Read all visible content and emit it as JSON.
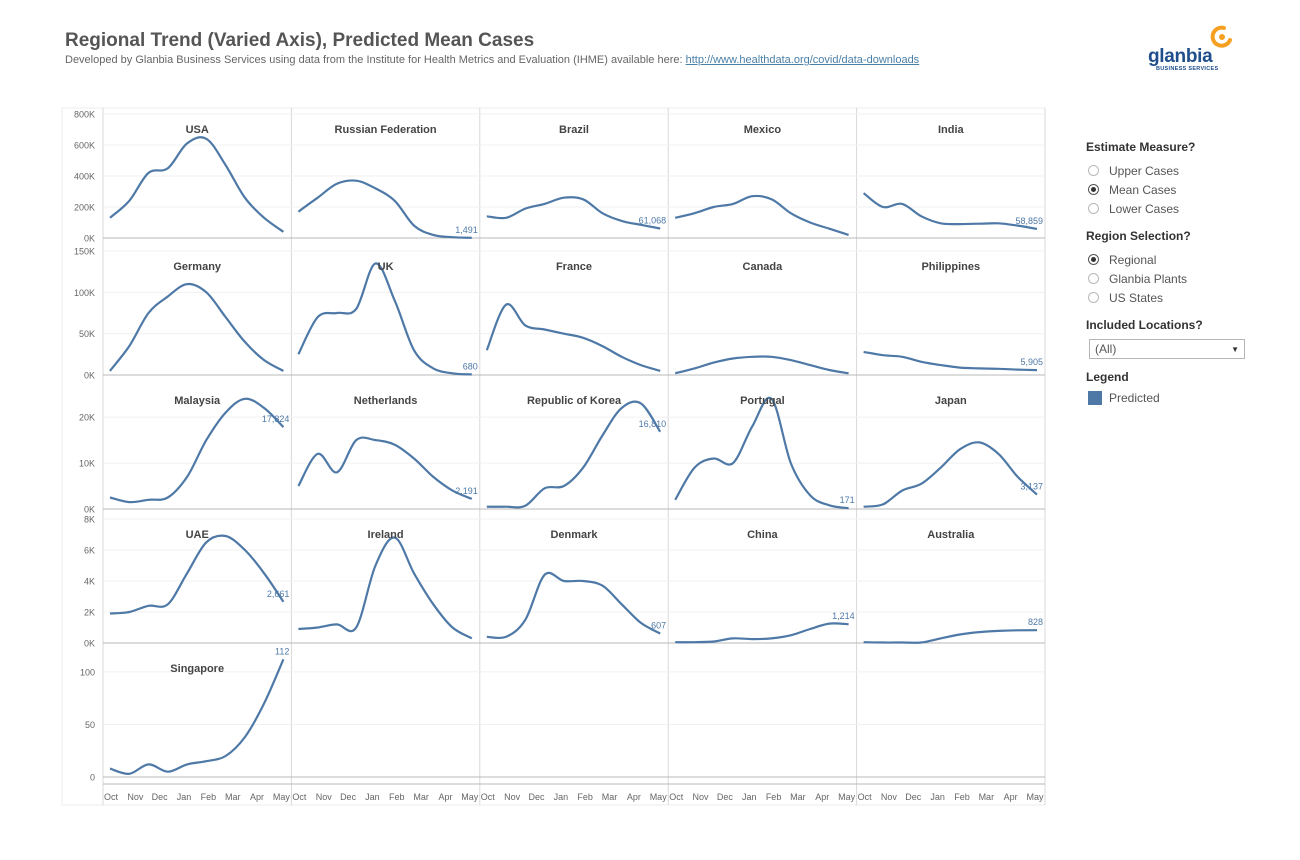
{
  "header": {
    "title": "Regional Trend (Varied Axis), Predicted Mean Cases",
    "subtitle_text": "Developed by Glanbia Business Services using data from the Institute for Health Metrics and Evaluation (IHME) available here:",
    "subtitle_link": "http://www.healthdata.org/covid/data-downloads"
  },
  "logo": {
    "word": "glanbia",
    "tagline": "BUSINESS SERVICES",
    "brand_color": "#1f4e8c",
    "swirl_color": "#f5a020"
  },
  "filters": {
    "estimate": {
      "title": "Estimate Measure?",
      "options": [
        "Upper Cases",
        "Mean Cases",
        "Lower Cases"
      ],
      "selected": "Mean Cases"
    },
    "region": {
      "title": "Region Selection?",
      "options": [
        "Regional",
        "Glanbia Plants",
        "US States"
      ],
      "selected": "Regional"
    },
    "locations": {
      "title": "Included Locations?",
      "value": "(All)"
    },
    "legend": {
      "title": "Legend",
      "item": "Predicted",
      "color": "#4e79a7"
    }
  },
  "chart_data": {
    "type": "line",
    "series_color": "#4e79a7",
    "x_tick_labels": [
      "Oct",
      "Nov",
      "Dec",
      "Jan",
      "Feb",
      "Mar",
      "Apr",
      "May"
    ],
    "rows": [
      {
        "y_ticks": [
          0,
          200000,
          400000,
          600000,
          800000
        ],
        "y_tick_labels": [
          "0K",
          "200K",
          "400K",
          "600K",
          "800K"
        ],
        "ylim": [
          0,
          800000
        ],
        "panels": [
          {
            "name": "USA",
            "values": [
              130000,
              240000,
              420000,
              450000,
              610000,
              640000,
              470000,
              260000,
              130000,
              40000
            ],
            "end_label": ""
          },
          {
            "name": "Russian Federation",
            "values": [
              170000,
              260000,
              350000,
              370000,
              320000,
              240000,
              80000,
              20000,
              5000,
              1491
            ],
            "end_label": "1,491"
          },
          {
            "name": "Brazil",
            "values": [
              140000,
              130000,
              190000,
              220000,
              260000,
              250000,
              160000,
              110000,
              85000,
              61068
            ],
            "end_label": "61,068"
          },
          {
            "name": "Mexico",
            "values": [
              130000,
              160000,
              200000,
              220000,
              270000,
              250000,
              160000,
              100000,
              60000,
              20000
            ],
            "end_label": ""
          },
          {
            "name": "India",
            "values": [
              290000,
              200000,
              220000,
              140000,
              95000,
              90000,
              92000,
              95000,
              80000,
              58859
            ],
            "end_label": "58,859"
          }
        ]
      },
      {
        "y_ticks": [
          0,
          50000,
          100000,
          150000
        ],
        "y_tick_labels": [
          "0K",
          "50K",
          "100K",
          "150K"
        ],
        "ylim": [
          0,
          150000
        ],
        "panels": [
          {
            "name": "Germany",
            "values": [
              5000,
              35000,
              75000,
              95000,
              110000,
              100000,
              70000,
              40000,
              18000,
              5000
            ],
            "end_label": ""
          },
          {
            "name": "UK",
            "values": [
              25000,
              70000,
              75000,
              80000,
              135000,
              90000,
              30000,
              8000,
              2000,
              680
            ],
            "end_label": "680"
          },
          {
            "name": "France",
            "values": [
              30000,
              85000,
              60000,
              55000,
              50000,
              45000,
              35000,
              22000,
              12000,
              5000
            ],
            "end_label": ""
          },
          {
            "name": "Canada",
            "values": [
              2000,
              8000,
              15000,
              20000,
              22000,
              22000,
              18000,
              12000,
              6000,
              2000
            ],
            "end_label": ""
          },
          {
            "name": "Philippines",
            "values": [
              28000,
              24000,
              22000,
              16000,
              12000,
              9000,
              8000,
              7500,
              6500,
              5905
            ],
            "end_label": "5,905"
          }
        ]
      },
      {
        "y_ticks": [
          0,
          10000,
          20000
        ],
        "y_tick_labels": [
          "0K",
          "10K",
          "20K"
        ],
        "ylim": [
          0,
          27000
        ],
        "panels": [
          {
            "name": "Malaysia",
            "values": [
              2500,
              1500,
              2000,
              2500,
              7000,
              15000,
              21000,
              24000,
              22000,
              17824
            ],
            "end_label": "17,824"
          },
          {
            "name": "Netherlands",
            "values": [
              5000,
              12000,
              8000,
              15000,
              15000,
              14000,
              11000,
              7000,
              4000,
              2191
            ],
            "end_label": "2,191"
          },
          {
            "name": "Republic of Korea",
            "values": [
              500,
              500,
              700,
              4500,
              5000,
              9000,
              16000,
              22000,
              23000,
              16810
            ],
            "end_label": "16,810"
          },
          {
            "name": "Portugal",
            "values": [
              2000,
              9000,
              11000,
              10000,
              18000,
              24000,
              10000,
              3000,
              800,
              171
            ],
            "end_label": "171"
          },
          {
            "name": "Japan",
            "values": [
              500,
              1000,
              4000,
              5500,
              9000,
              13000,
              14500,
              12000,
              7000,
              3137
            ],
            "end_label": "3,137"
          }
        ]
      },
      {
        "y_ticks": [
          0,
          2000,
          4000,
          6000,
          8000
        ],
        "y_tick_labels": [
          "0K",
          "2K",
          "4K",
          "6K",
          "8K"
        ],
        "ylim": [
          0,
          8000
        ],
        "panels": [
          {
            "name": "UAE",
            "values": [
              1900,
              2000,
              2400,
              2500,
              4500,
              6500,
              6900,
              6000,
              4500,
              2661
            ],
            "end_label": "2,661"
          },
          {
            "name": "Ireland",
            "values": [
              900,
              1000,
              1200,
              1000,
              5000,
              6800,
              4500,
              2500,
              1000,
              300
            ],
            "end_label": ""
          },
          {
            "name": "Denmark",
            "values": [
              400,
              400,
              1500,
              4400,
              4000,
              4000,
              3700,
              2500,
              1300,
              607
            ],
            "end_label": "607"
          },
          {
            "name": "China",
            "values": [
              50,
              50,
              100,
              300,
              250,
              300,
              500,
              900,
              1250,
              1214
            ],
            "end_label": "1,214"
          },
          {
            "name": "Australia",
            "values": [
              50,
              30,
              30,
              30,
              300,
              550,
              700,
              780,
              820,
              828
            ],
            "end_label": "828"
          }
        ]
      },
      {
        "y_ticks": [
          0,
          50,
          100
        ],
        "y_tick_labels": [
          "0",
          "50",
          "100"
        ],
        "ylim": [
          0,
          118
        ],
        "panels": [
          {
            "name": "Singapore",
            "values": [
              8,
              3,
              12,
              5,
              12,
              15,
              20,
              38,
              70,
              112
            ],
            "end_label": "112"
          }
        ]
      }
    ]
  }
}
